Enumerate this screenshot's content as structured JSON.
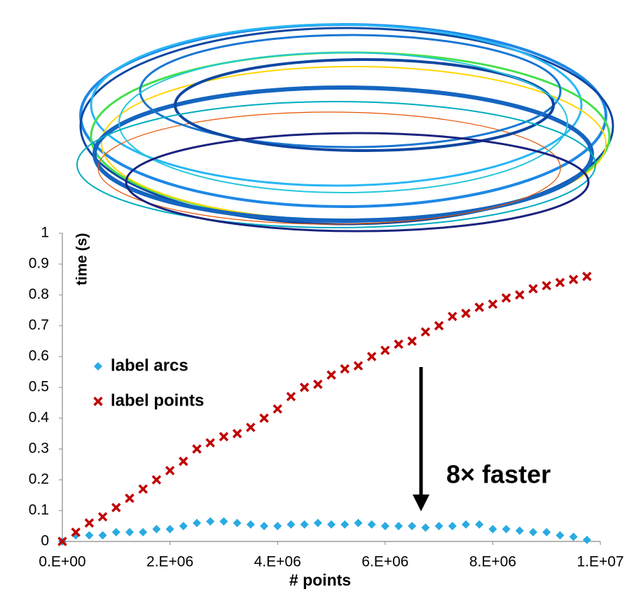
{
  "chart_data": {
    "type": "scatter",
    "x_label": "# points",
    "y_label": "time (s)",
    "annotation": "8× faster",
    "x": [
      0,
      250000,
      500000,
      750000,
      1000000,
      1250000,
      1500000,
      1750000,
      2000000,
      2250000,
      2500000,
      2750000,
      3000000,
      3250000,
      3500000,
      3750000,
      4000000,
      4250000,
      4500000,
      4750000,
      5000000,
      5250000,
      5500000,
      5750000,
      6000000,
      6250000,
      6500000,
      6750000,
      7000000,
      7250000,
      7500000,
      7750000,
      8000000,
      8250000,
      8500000,
      8750000,
      9000000,
      9250000,
      9500000,
      9750000
    ],
    "series": [
      {
        "name": "label arcs",
        "color": "#29abe2",
        "marker": "diamond",
        "values": [
          0,
          0.02,
          0.02,
          0.02,
          0.03,
          0.03,
          0.03,
          0.04,
          0.04,
          0.05,
          0.06,
          0.065,
          0.065,
          0.06,
          0.055,
          0.05,
          0.05,
          0.055,
          0.055,
          0.06,
          0.055,
          0.055,
          0.06,
          0.055,
          0.05,
          0.05,
          0.05,
          0.045,
          0.05,
          0.05,
          0.055,
          0.055,
          0.04,
          0.04,
          0.035,
          0.03,
          0.03,
          0.02,
          0.015,
          0.005
        ]
      },
      {
        "name": "label points",
        "color": "#c00000",
        "marker": "x",
        "values": [
          0,
          0.03,
          0.06,
          0.08,
          0.11,
          0.14,
          0.17,
          0.2,
          0.23,
          0.26,
          0.3,
          0.32,
          0.34,
          0.35,
          0.37,
          0.4,
          0.43,
          0.47,
          0.5,
          0.51,
          0.54,
          0.56,
          0.57,
          0.6,
          0.62,
          0.64,
          0.65,
          0.68,
          0.7,
          0.73,
          0.74,
          0.76,
          0.77,
          0.79,
          0.8,
          0.82,
          0.83,
          0.84,
          0.85,
          0.86
        ]
      }
    ],
    "xlim": [
      0,
      10000000
    ],
    "xticks": [
      {
        "value": 0,
        "label": "0.E+00"
      },
      {
        "value": 2000000,
        "label": "2.E+06"
      },
      {
        "value": 4000000,
        "label": "4.E+06"
      },
      {
        "value": 6000000,
        "label": "6.E+06"
      },
      {
        "value": 8000000,
        "label": "8.E+06"
      },
      {
        "value": 10000000,
        "label": "1.E+07"
      }
    ],
    "ylim": [
      0,
      1
    ],
    "yticks": [
      0,
      0.1,
      0.2,
      0.3,
      0.4,
      0.5,
      0.6,
      0.7,
      0.8,
      0.9,
      1
    ],
    "grid": false,
    "legend": "center-left"
  }
}
